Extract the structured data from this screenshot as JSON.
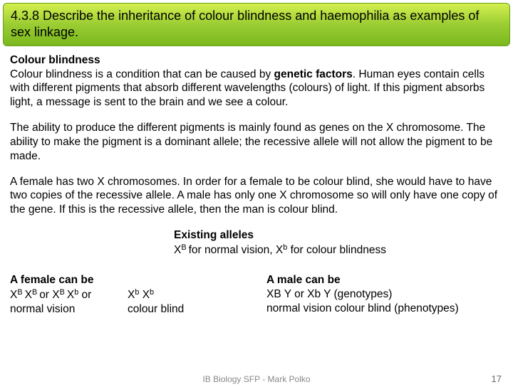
{
  "header": {
    "title": "4.3.8 Describe the inheritance of colour blindness and haemophilia as examples of sex linkage."
  },
  "section1": {
    "heading": "Colour blindness",
    "p1a": "Colour blindness is a condition that can be caused by ",
    "p1b": "genetic factors",
    "p1c": ". Human eyes contain cells with different pigments that absorb different wavelengths (colours) of light. If this pigment absorbs light, a message is sent to the brain and we see a colour."
  },
  "section2": {
    "p": "The ability to produce the different pigments is mainly found as genes on the X chromosome. The ability to make the pigment is a dominant allele; the recessive allele will not allow the pigment to be made."
  },
  "section3": {
    "p": "A female has two X chromosomes. In order for a female to be colour blind, she would have to have two copies of the recessive allele. A male has only one X chromosome so will only have one copy of the gene. If this is the recessive allele, then the man is colour blind."
  },
  "existing": {
    "title": "Existing alleles",
    "line_pre": "X",
    "line_supB": "B ",
    "line_mid": "for normal vision, X",
    "line_supb": "b",
    "line_end": " for colour blindness"
  },
  "female": {
    "title": "A female can be",
    "r1_X": "X",
    "r1_B": "B ",
    "r1_or": "or ",
    "r1_b": "b",
    "r1_or2": "   or",
    "r2_a": "normal vision",
    "r2_b": "colour blind"
  },
  "male": {
    "title": "A male can be",
    "line2": "XB Y or Xb Y (genotypes)",
    "line3": "normal vision colour blind (phenotypes)"
  },
  "footer": {
    "text": "IB Biology SFP - Mark Polko",
    "page": "17"
  }
}
